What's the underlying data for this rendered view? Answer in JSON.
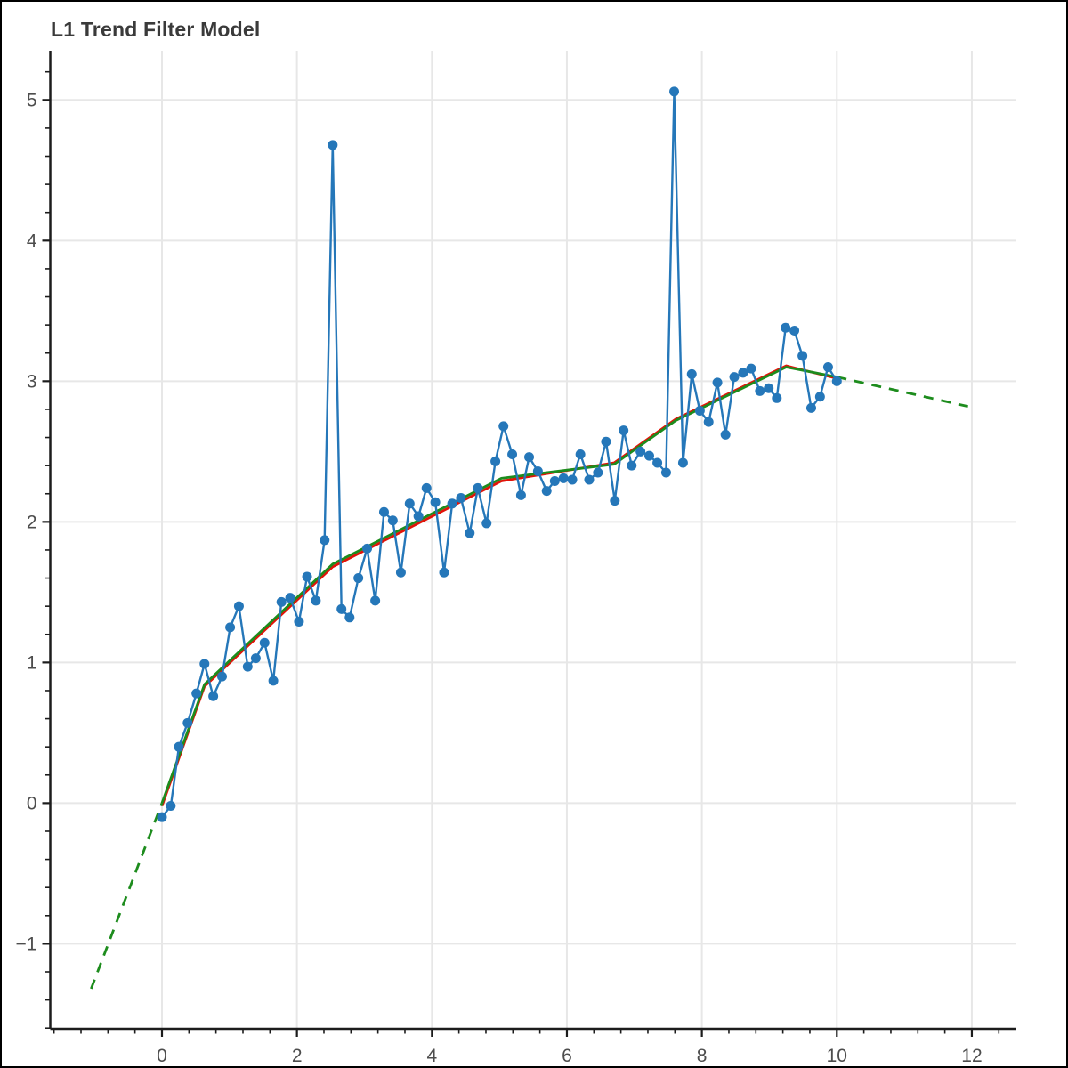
{
  "title": "L1 Trend Filter Model",
  "colors": {
    "data": "#2577b9",
    "fit": "#e11309",
    "trend": "#1d8c1d",
    "grid": "#e7e7e7",
    "axis": "#1c1c1c",
    "tick_label": "#4d4d4d",
    "title": "#3a3a3a",
    "background": "#ffffff",
    "border": "#000000"
  },
  "chart_data": {
    "type": "line",
    "title": "L1 Trend Filter Model",
    "xlabel": "",
    "ylabel": "",
    "grid": true,
    "legend": "none",
    "xlim": [
      -1.655,
      12.66
    ],
    "ylim": [
      -1.605,
      5.35
    ],
    "x_ticks": [
      0,
      2,
      4,
      6,
      8,
      10,
      12
    ],
    "y_ticks": [
      -1,
      0,
      1,
      2,
      3,
      4,
      5
    ],
    "x_minor_step": 0.4,
    "y_minor_step": 0.2,
    "series": [
      {
        "name": "observed-data",
        "kind": "line-markers",
        "color_key": "data",
        "points": [
          [
            0.0,
            -0.1
          ],
          [
            0.13,
            -0.02
          ],
          [
            0.25,
            0.4
          ],
          [
            0.38,
            0.57
          ],
          [
            0.51,
            0.78
          ],
          [
            0.63,
            0.99
          ],
          [
            0.76,
            0.76
          ],
          [
            0.89,
            0.9
          ],
          [
            1.01,
            1.25
          ],
          [
            1.14,
            1.4
          ],
          [
            1.27,
            0.97
          ],
          [
            1.39,
            1.03
          ],
          [
            1.52,
            1.14
          ],
          [
            1.65,
            0.87
          ],
          [
            1.77,
            1.43
          ],
          [
            1.9,
            1.46
          ],
          [
            2.03,
            1.29
          ],
          [
            2.15,
            1.61
          ],
          [
            2.28,
            1.44
          ],
          [
            2.41,
            1.87
          ],
          [
            2.53,
            4.68
          ],
          [
            2.66,
            1.38
          ],
          [
            2.78,
            1.32
          ],
          [
            2.91,
            1.6
          ],
          [
            3.04,
            1.81
          ],
          [
            3.16,
            1.44
          ],
          [
            3.29,
            2.07
          ],
          [
            3.42,
            2.01
          ],
          [
            3.54,
            1.64
          ],
          [
            3.67,
            2.13
          ],
          [
            3.8,
            2.04
          ],
          [
            3.92,
            2.24
          ],
          [
            4.05,
            2.14
          ],
          [
            4.18,
            1.64
          ],
          [
            4.3,
            2.13
          ],
          [
            4.43,
            2.17
          ],
          [
            4.56,
            1.92
          ],
          [
            4.68,
            2.24
          ],
          [
            4.81,
            1.99
          ],
          [
            4.94,
            2.43
          ],
          [
            5.06,
            2.68
          ],
          [
            5.19,
            2.48
          ],
          [
            5.32,
            2.19
          ],
          [
            5.44,
            2.46
          ],
          [
            5.57,
            2.36
          ],
          [
            5.7,
            2.22
          ],
          [
            5.82,
            2.29
          ],
          [
            5.95,
            2.31
          ],
          [
            6.08,
            2.3
          ],
          [
            6.2,
            2.48
          ],
          [
            6.33,
            2.3
          ],
          [
            6.46,
            2.35
          ],
          [
            6.58,
            2.57
          ],
          [
            6.71,
            2.15
          ],
          [
            6.84,
            2.65
          ],
          [
            6.96,
            2.4
          ],
          [
            7.09,
            2.5
          ],
          [
            7.22,
            2.47
          ],
          [
            7.34,
            2.42
          ],
          [
            7.47,
            2.35
          ],
          [
            7.59,
            5.06
          ],
          [
            7.72,
            2.42
          ],
          [
            7.85,
            3.05
          ],
          [
            7.97,
            2.79
          ],
          [
            8.1,
            2.71
          ],
          [
            8.23,
            2.99
          ],
          [
            8.35,
            2.62
          ],
          [
            8.48,
            3.03
          ],
          [
            8.61,
            3.06
          ],
          [
            8.73,
            3.09
          ],
          [
            8.86,
            2.93
          ],
          [
            8.99,
            2.95
          ],
          [
            9.11,
            2.88
          ],
          [
            9.24,
            3.38
          ],
          [
            9.37,
            3.36
          ],
          [
            9.49,
            3.18
          ],
          [
            9.62,
            2.81
          ],
          [
            9.75,
            2.89
          ],
          [
            9.87,
            3.1
          ],
          [
            10.0,
            3.0
          ]
        ]
      },
      {
        "name": "l1-fit",
        "kind": "line",
        "color_key": "fit",
        "points": [
          [
            0,
            -0.02
          ],
          [
            0.63,
            0.83
          ],
          [
            2.53,
            1.68
          ],
          [
            5.03,
            2.29
          ],
          [
            6.7,
            2.42
          ],
          [
            7.61,
            2.73
          ],
          [
            9.25,
            3.11
          ],
          [
            10,
            3.02
          ]
        ]
      },
      {
        "name": "true-trend",
        "kind": "trend",
        "color_key": "trend",
        "dashed_pre": [
          [
            -1.05,
            -1.32
          ],
          [
            0,
            0
          ]
        ],
        "solid": [
          [
            0,
            0
          ],
          [
            0.63,
            0.845
          ],
          [
            2.53,
            1.7
          ],
          [
            5.03,
            2.31
          ],
          [
            6.7,
            2.41
          ],
          [
            7.61,
            2.72
          ],
          [
            9.25,
            3.1
          ],
          [
            10,
            3.03
          ]
        ],
        "dashed_post": [
          [
            10,
            3.03
          ],
          [
            11.95,
            2.82
          ]
        ]
      }
    ]
  }
}
